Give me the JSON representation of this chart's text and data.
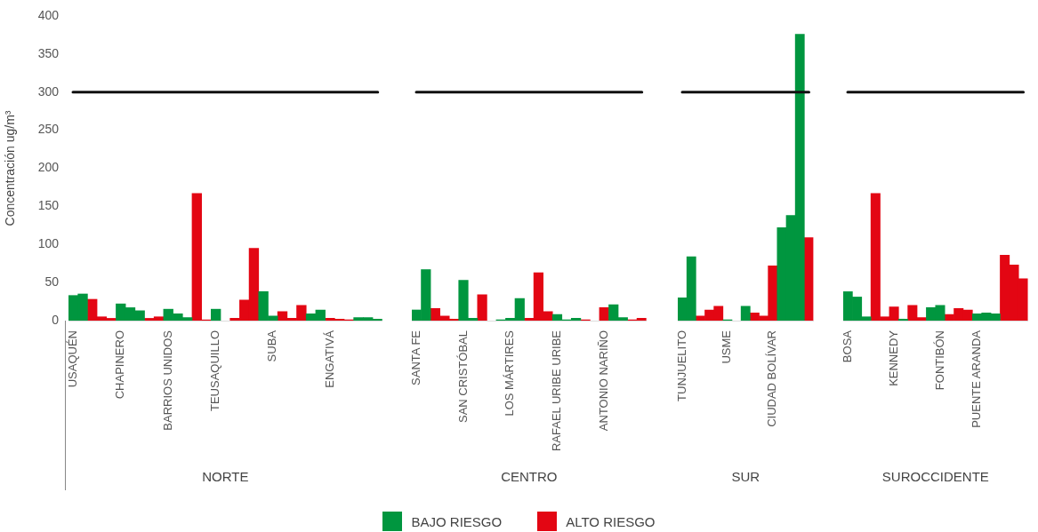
{
  "chart_data": [
    {
      "type": "bar",
      "stacked": true,
      "xlabel": "NORTE",
      "ylabel": "Concentración ug/m³",
      "legend": "bottom",
      "ylim": [
        0,
        400
      ],
      "yticks": [
        0,
        50,
        100,
        150,
        200,
        250,
        300,
        350,
        400
      ],
      "categories": [
        "USAQUÉN",
        null,
        null,
        null,
        null,
        "CHAPINERO",
        null,
        null,
        null,
        null,
        "BARRIOS UNIDOS",
        null,
        null,
        null,
        null,
        "TEUSAQUILLO",
        null,
        null,
        null,
        null,
        null,
        "SUBA",
        null,
        null,
        null,
        null,
        null,
        "ENGATIVÁ",
        null,
        null,
        null,
        null,
        null
      ],
      "series": [
        {
          "name": "BAJO RIESGO",
          "color": "#00963f",
          "values": [
            33,
            35,
            null,
            null,
            null,
            22,
            17,
            13,
            null,
            null,
            15,
            9,
            4,
            null,
            null,
            15,
            null,
            null,
            null,
            null,
            38,
            6,
            null,
            null,
            null,
            9,
            14,
            null,
            null,
            null,
            4,
            4,
            2
          ]
        },
        {
          "name": "ALTO RIESGO",
          "color": "#e30613",
          "values": [
            null,
            null,
            28,
            5,
            3,
            null,
            null,
            null,
            3,
            5,
            null,
            null,
            null,
            167,
            1,
            null,
            null,
            3,
            27,
            95,
            null,
            null,
            12,
            3,
            20,
            null,
            null,
            3,
            2,
            1,
            null,
            null,
            null
          ]
        }
      ],
      "ref_lines": [
        {
          "axis": "y",
          "value": 300,
          "color": "#111111"
        }
      ]
    },
    {
      "type": "bar",
      "stacked": true,
      "xlabel": "CENTRO",
      "tick_labels": "x",
      "ylim": [
        0,
        400
      ],
      "categories": [
        "SANTA FE",
        null,
        null,
        null,
        null,
        "SAN CRISTÓBAL",
        null,
        null,
        null,
        null,
        "LOS MÁRTIRES",
        null,
        null,
        null,
        null,
        "RAFAEL URIBE URIBE",
        null,
        null,
        null,
        null,
        "ANTONIO NARIÑO",
        null,
        null,
        null,
        null
      ],
      "series": [
        {
          "color": "#00963f",
          "values": [
            14,
            67,
            null,
            null,
            null,
            53,
            3,
            null,
            null,
            1,
            3,
            29,
            null,
            null,
            null,
            8,
            1,
            3,
            null,
            null,
            null,
            21,
            4,
            null,
            null
          ]
        },
        {
          "color": "#e30613",
          "values": [
            null,
            null,
            16,
            6,
            2,
            null,
            null,
            34,
            null,
            null,
            null,
            null,
            3,
            63,
            12,
            null,
            null,
            null,
            1,
            null,
            17,
            null,
            null,
            1,
            3
          ]
        }
      ],
      "ref_lines": [
        {
          "axis": "y",
          "value": 300,
          "color": "#111111"
        }
      ]
    },
    {
      "type": "bar",
      "stacked": true,
      "xlabel": "SUR",
      "tick_labels": "x",
      "ylim": [
        0,
        400
      ],
      "categories": [
        "TUNJUELITO",
        null,
        null,
        null,
        null,
        "USME",
        null,
        null,
        null,
        null,
        "CIUDAD BOLÍVAR",
        null,
        null,
        null,
        null
      ],
      "series": [
        {
          "color": "#00963f",
          "values": [
            30,
            84,
            null,
            null,
            null,
            1,
            null,
            19,
            null,
            null,
            null,
            122,
            138,
            376,
            null
          ]
        },
        {
          "color": "#e30613",
          "values": [
            null,
            null,
            6,
            14,
            19,
            null,
            null,
            null,
            10,
            6,
            72,
            null,
            null,
            null,
            109
          ]
        }
      ],
      "ref_lines": [
        {
          "axis": "y",
          "value": 300,
          "color": "#111111"
        }
      ]
    },
    {
      "type": "bar",
      "stacked": true,
      "xlabel": "SUROCCIDENTE",
      "tick_labels": "x",
      "ylim": [
        0,
        400
      ],
      "categories": [
        "BOSA",
        null,
        null,
        null,
        null,
        "KENNEDY",
        null,
        null,
        null,
        null,
        "FONTIBÓN",
        null,
        null,
        null,
        "PUENTE ARANDA",
        null,
        null,
        null,
        null,
        null
      ],
      "series": [
        {
          "color": "#00963f",
          "values": [
            38,
            31,
            5,
            null,
            null,
            null,
            2,
            null,
            null,
            17,
            20,
            null,
            null,
            null,
            9,
            10,
            9,
            null,
            null,
            null
          ]
        },
        {
          "color": "#e30613",
          "values": [
            null,
            null,
            null,
            167,
            5,
            18,
            null,
            20,
            4,
            null,
            null,
            8,
            16,
            14,
            null,
            null,
            null,
            86,
            73,
            55
          ]
        }
      ],
      "ref_lines": [
        {
          "axis": "y",
          "value": 300,
          "color": "#111111"
        }
      ]
    }
  ]
}
